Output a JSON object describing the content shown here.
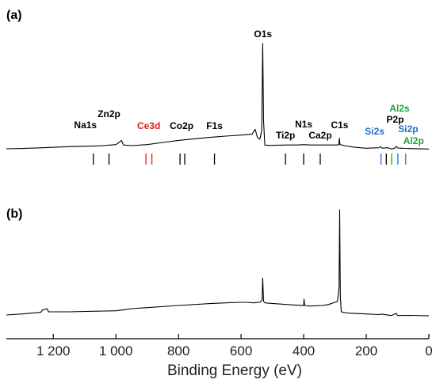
{
  "chart_data": {
    "type": "line",
    "xlabel": "Binding Energy (eV)",
    "xlim": [
      1350,
      0
    ],
    "x_ticks": [
      1200,
      1000,
      800,
      600,
      400,
      200,
      0
    ],
    "x_tick_labels": [
      "1 200",
      "1 000",
      "800",
      "600",
      "400",
      "200",
      "0"
    ],
    "colors": {
      "black": "#000000",
      "red": "#e31a1c",
      "blue": "#1f6fc4",
      "green": "#1aa33a"
    },
    "panels": [
      {
        "label": "(a)",
        "annotations": [
          {
            "text": "O1s",
            "x": 530,
            "color": "black"
          },
          {
            "text": "Zn2p",
            "x": 1022,
            "color": "black"
          },
          {
            "text": "Na1s",
            "x": 1072,
            "color": "black"
          },
          {
            "text": "Ce3d",
            "x": 895,
            "color": "red"
          },
          {
            "text": "Co2p",
            "x": 790,
            "color": "black"
          },
          {
            "text": "F1s",
            "x": 685,
            "color": "black"
          },
          {
            "text": "Ti2p",
            "x": 458,
            "color": "black"
          },
          {
            "text": "N1s",
            "x": 400,
            "color": "black"
          },
          {
            "text": "Ca2p",
            "x": 347,
            "color": "black"
          },
          {
            "text": "C1s",
            "x": 285,
            "color": "black"
          },
          {
            "text": "Al2s",
            "x": 119,
            "color": "green"
          },
          {
            "text": "P2p",
            "x": 133,
            "color": "black"
          },
          {
            "text": "Si2s",
            "x": 153,
            "color": "blue"
          },
          {
            "text": "Si2p",
            "x": 99,
            "color": "blue"
          },
          {
            "text": "Al2p",
            "x": 74,
            "color": "green"
          }
        ],
        "reference_lines": [
          {
            "x": 1072,
            "color": "black"
          },
          {
            "x": 1022,
            "color": "black"
          },
          {
            "x": 904,
            "color": "red"
          },
          {
            "x": 885,
            "color": "red"
          },
          {
            "x": 795,
            "color": "black"
          },
          {
            "x": 780,
            "color": "black"
          },
          {
            "x": 685,
            "color": "black"
          },
          {
            "x": 458,
            "color": "black"
          },
          {
            "x": 400,
            "color": "black"
          },
          {
            "x": 347,
            "color": "black"
          },
          {
            "x": 153,
            "color": "blue"
          },
          {
            "x": 136,
            "color": "black"
          },
          {
            "x": 119,
            "color": "green"
          },
          {
            "x": 99,
            "color": "blue"
          },
          {
            "x": 74,
            "color": "green"
          }
        ],
        "baseline": [
          [
            1350,
            0
          ],
          [
            1300,
            0.3
          ],
          [
            1250,
            0.8
          ],
          [
            1150,
            2.0
          ],
          [
            1100,
            2.4
          ],
          [
            1050,
            2.8
          ],
          [
            1000,
            4.0
          ],
          [
            990,
            6.0
          ],
          [
            982,
            8.0
          ],
          [
            976,
            3.6
          ],
          [
            950,
            3.0
          ],
          [
            900,
            4.0
          ],
          [
            850,
            6.0
          ],
          [
            800,
            8.0
          ],
          [
            750,
            9.5
          ],
          [
            700,
            10.8
          ],
          [
            650,
            12.0
          ],
          [
            600,
            13.0
          ],
          [
            565,
            14.0
          ],
          [
            555,
            18.5
          ],
          [
            548,
            11.0
          ],
          [
            540,
            9.0
          ],
          [
            534,
            18.0
          ],
          [
            531,
            100
          ],
          [
            528,
            26.0
          ],
          [
            524,
            3.5
          ],
          [
            510,
            3.2
          ],
          [
            450,
            3.6
          ],
          [
            420,
            3.6
          ],
          [
            400,
            4.0
          ],
          [
            380,
            3.6
          ],
          [
            340,
            3.6
          ],
          [
            300,
            3.6
          ],
          [
            288,
            3.8
          ],
          [
            286,
            10.0
          ],
          [
            284,
            4.0
          ],
          [
            270,
            3.0
          ],
          [
            240,
            1.6
          ],
          [
            200,
            0.5
          ],
          [
            160,
            1.0
          ],
          [
            154,
            2.0
          ],
          [
            150,
            0.6
          ],
          [
            130,
            1.0
          ],
          [
            120,
            -0.2
          ],
          [
            110,
            0.4
          ],
          [
            104,
            2.4
          ],
          [
            100,
            0.8
          ],
          [
            80,
            0.4
          ],
          [
            60,
            0.2
          ],
          [
            0,
            -0.2
          ]
        ]
      },
      {
        "label": "(b)",
        "baseline": [
          [
            1350,
            0
          ],
          [
            1300,
            1.0
          ],
          [
            1240,
            2.5
          ],
          [
            1235,
            4.5
          ],
          [
            1220,
            6.0
          ],
          [
            1215,
            3.0
          ],
          [
            1150,
            3.0
          ],
          [
            1000,
            4.0
          ],
          [
            975,
            5.0
          ],
          [
            950,
            6.0
          ],
          [
            900,
            7.0
          ],
          [
            800,
            9.0
          ],
          [
            700,
            10.8
          ],
          [
            650,
            11.5
          ],
          [
            600,
            12.0
          ],
          [
            580,
            12.0
          ],
          [
            560,
            11.5
          ],
          [
            540,
            12.2
          ],
          [
            533,
            14.0
          ],
          [
            531,
            35.0
          ],
          [
            528,
            13.0
          ],
          [
            524,
            11.5
          ],
          [
            500,
            11.0
          ],
          [
            430,
            9.5
          ],
          [
            400,
            9.0
          ],
          [
            399,
            15.0
          ],
          [
            397,
            9.0
          ],
          [
            380,
            8.5
          ],
          [
            340,
            9.0
          ],
          [
            320,
            10.0
          ],
          [
            300,
            12.0
          ],
          [
            292,
            13.0
          ],
          [
            287,
            26.0
          ],
          [
            285,
            100
          ],
          [
            283,
            18.0
          ],
          [
            280,
            3.0
          ],
          [
            260,
            1.8
          ],
          [
            200,
            1.0
          ],
          [
            160,
            0.4
          ],
          [
            150,
            0.8
          ],
          [
            120,
            -0.5
          ],
          [
            104,
            1.6
          ],
          [
            100,
            -0.5
          ],
          [
            60,
            -0.4
          ],
          [
            0,
            -0.8
          ]
        ]
      }
    ]
  }
}
